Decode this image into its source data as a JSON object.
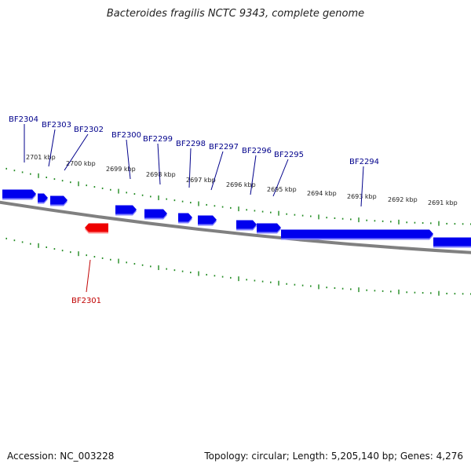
{
  "title": "Bacteroides fragilis NCTC 9343, complete genome",
  "footer": {
    "accession": "Accession: NC_003228",
    "stats": "Topology: circular; Length: 5,205,140 bp; Genes: 4,276"
  },
  "colors": {
    "forward_gene": "#0000ee",
    "reverse_gene": "#ee0000",
    "backbone": "#808080",
    "tick": "#228b22",
    "forward_label": "#00008b",
    "reverse_label": "#c00000"
  },
  "kbp_labels": [
    "2701 kbp",
    "2700 kbp",
    "2699 kbp",
    "2698 kbp",
    "2697 kbp",
    "2696 kbp",
    "2695 kbp",
    "2694 kbp",
    "2693 kbp",
    "2692 kbp",
    "2691 kbp"
  ],
  "genes": [
    {
      "name": "BF2304",
      "strand": "+"
    },
    {
      "name": "BF2303",
      "strand": "+"
    },
    {
      "name": "BF2302",
      "strand": "+"
    },
    {
      "name": "BF2301",
      "strand": "-"
    },
    {
      "name": "BF2300",
      "strand": "+"
    },
    {
      "name": "BF2299",
      "strand": "+"
    },
    {
      "name": "BF2298",
      "strand": "+"
    },
    {
      "name": "BF2297",
      "strand": "+"
    },
    {
      "name": "BF2296",
      "strand": "+"
    },
    {
      "name": "BF2295",
      "strand": "+"
    },
    {
      "name": "BF2294",
      "strand": "+"
    }
  ]
}
